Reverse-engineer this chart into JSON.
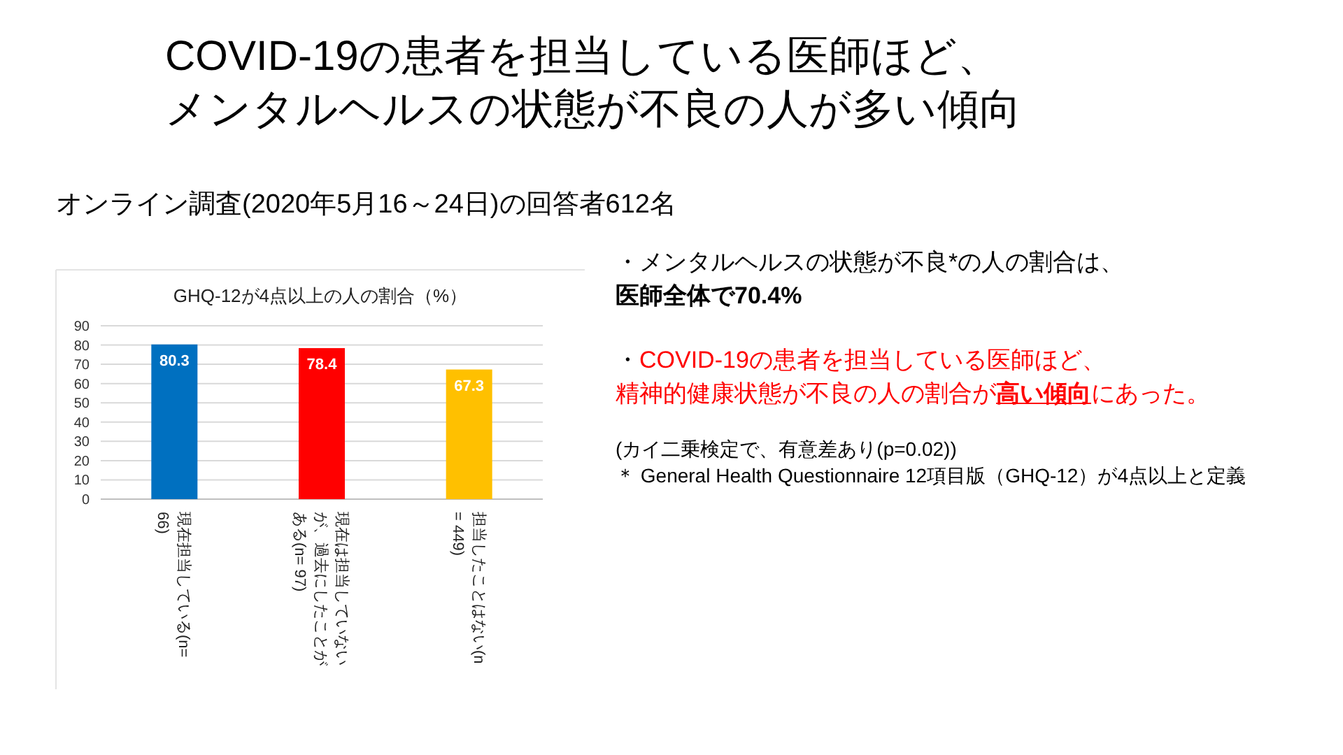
{
  "chart_data": {
    "type": "bar",
    "title": "COVID-19の患者を担当している医師ほど、メンタルヘルスの状態が不良の人が多い傾向",
    "subtitle": "オンライン調査(2020年5月16～24日)の回答者612名",
    "categories": [
      "現在担当している(n= 66)",
      "現在は担当していないが、過去にしたことがある(n= 97)",
      "担当したことはない(n= 449)"
    ],
    "values": [
      80.3,
      78.4,
      67.3
    ],
    "colors": [
      "#0070c0",
      "#ff0000",
      "#ffc000"
    ],
    "data_labels": true,
    "ylim": [
      0,
      90
    ],
    "yticks": [
      0,
      10,
      20,
      30,
      40,
      50,
      60,
      70,
      80,
      90
    ],
    "grid": "y",
    "annotations": [
      "GHQ-12が4点以上の人の割合（%）",
      "・メンタルヘルスの状態が不良*の人の割合は、",
      "医師全体で70.4%",
      "・COVID-19の患者を担当している医師ほど、",
      "精神的健康状態が不良の人の割合が",
      "高い傾向",
      "にあった。",
      "(カイ二乗検定で、有意差あり(p=0.02))",
      "＊ General Health Questionnaire 12項目版（GHQ-12）が4点以上と定義"
    ]
  }
}
